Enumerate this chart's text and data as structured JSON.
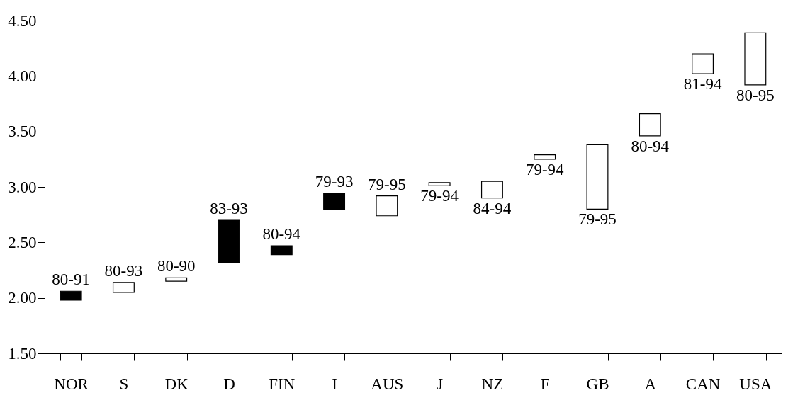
{
  "chart_data": {
    "type": "bar",
    "categories": [
      "NOR",
      "S",
      "DK",
      "D",
      "FIN",
      "I",
      "AUS",
      "J",
      "NZ",
      "F",
      "GB",
      "A",
      "CAN",
      "USA"
    ],
    "base": [
      1.98,
      2.05,
      2.15,
      2.32,
      2.39,
      2.8,
      2.74,
      3.01,
      2.9,
      3.25,
      2.8,
      3.46,
      4.02,
      3.92
    ],
    "values": [
      0.08,
      0.09,
      0.03,
      0.38,
      0.08,
      0.14,
      0.18,
      0.03,
      0.15,
      0.04,
      0.58,
      0.2,
      0.18,
      0.47
    ],
    "colors": [
      "#000000",
      "#ffffff",
      "#ffffff",
      "#000000",
      "#000000",
      "#000000",
      "#ffffff",
      "#ffffff",
      "#ffffff",
      "#ffffff",
      "#ffffff",
      "#ffffff",
      "#ffffff",
      "#ffffff"
    ],
    "value_labels": [
      "80-91",
      "80-93",
      "80-90",
      "83-93",
      "80-94",
      "79-93",
      "79-95",
      "79-94",
      "84-94",
      "79-94",
      "79-95",
      "80-94",
      "81-94",
      "80-95"
    ],
    "ylim": [
      1.5,
      4.5
    ],
    "yticks": [
      {
        "value": 1.5,
        "label": "1.50"
      },
      {
        "value": 2,
        "label": "2.00"
      },
      {
        "value": 2.5,
        "label": "2.50"
      },
      {
        "value": 3,
        "label": "3.00"
      },
      {
        "value": 3.5,
        "label": "3.50"
      },
      {
        "value": 4,
        "label": "4.00"
      },
      {
        "value": 4.5,
        "label": "4.50"
      }
    ],
    "grid": false,
    "legend": false
  }
}
